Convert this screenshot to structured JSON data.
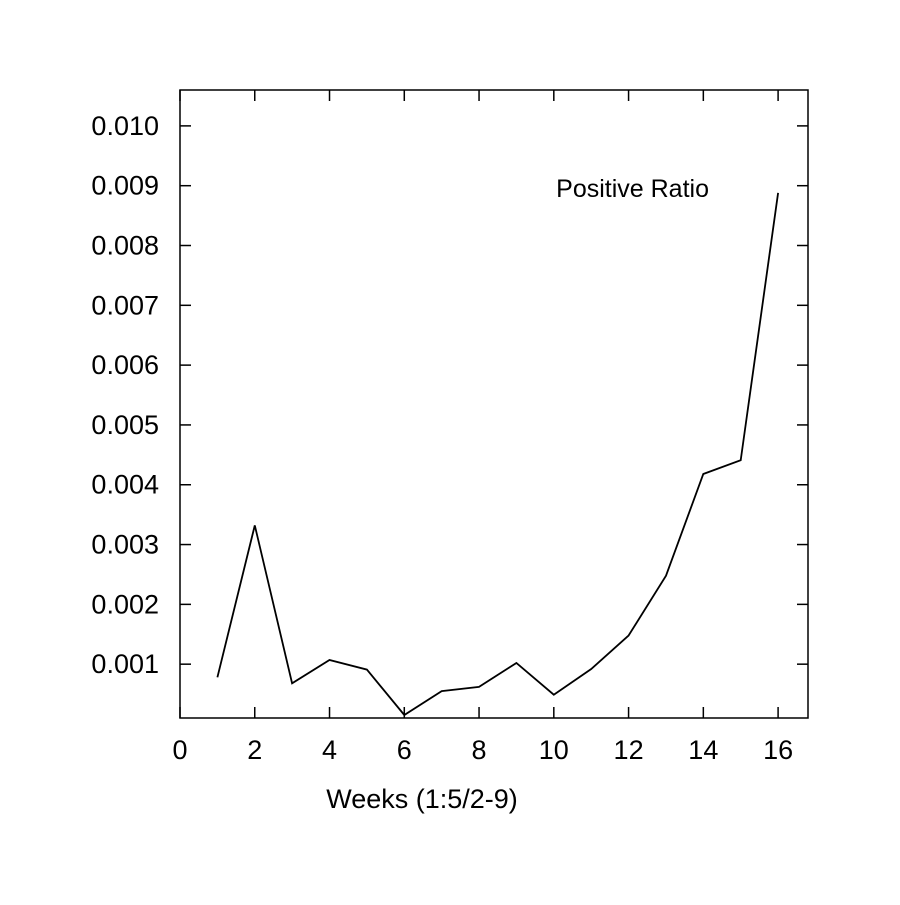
{
  "chart_data": {
    "type": "line",
    "title": "",
    "xlabel": "Weeks (1:5/2-9)",
    "ylabel": "",
    "xlim": [
      0,
      16.8
    ],
    "ylim": [
      0.0001,
      0.0106
    ],
    "x_ticks": [
      0,
      2,
      4,
      6,
      8,
      10,
      12,
      14,
      16
    ],
    "x_tick_labels": [
      "0",
      "2",
      "4",
      "6",
      "8",
      "10",
      "12",
      "14",
      "16"
    ],
    "y_ticks": [
      0.001,
      0.002,
      0.003,
      0.004,
      0.005,
      0.006,
      0.007,
      0.008,
      0.009,
      0.01
    ],
    "y_tick_labels": [
      "0.001",
      "0.002",
      "0.003",
      "0.004",
      "0.005",
      "0.006",
      "0.007",
      "0.008",
      "0.009",
      "0.010"
    ],
    "grid": false,
    "legend_position": "top-right",
    "line_color": "#000000",
    "series": [
      {
        "name": "Positive Ratio",
        "x": [
          1,
          2,
          3,
          4,
          5,
          6,
          7,
          8,
          9,
          10,
          11,
          12,
          13,
          14,
          15,
          16
        ],
        "values": [
          0.00078,
          0.00332,
          0.00068,
          0.00107,
          0.00091,
          0.00015,
          0.00055,
          0.00062,
          0.00102,
          0.00049,
          0.00092,
          0.00148,
          0.00248,
          0.00418,
          0.00441,
          0.00888
        ]
      }
    ]
  }
}
